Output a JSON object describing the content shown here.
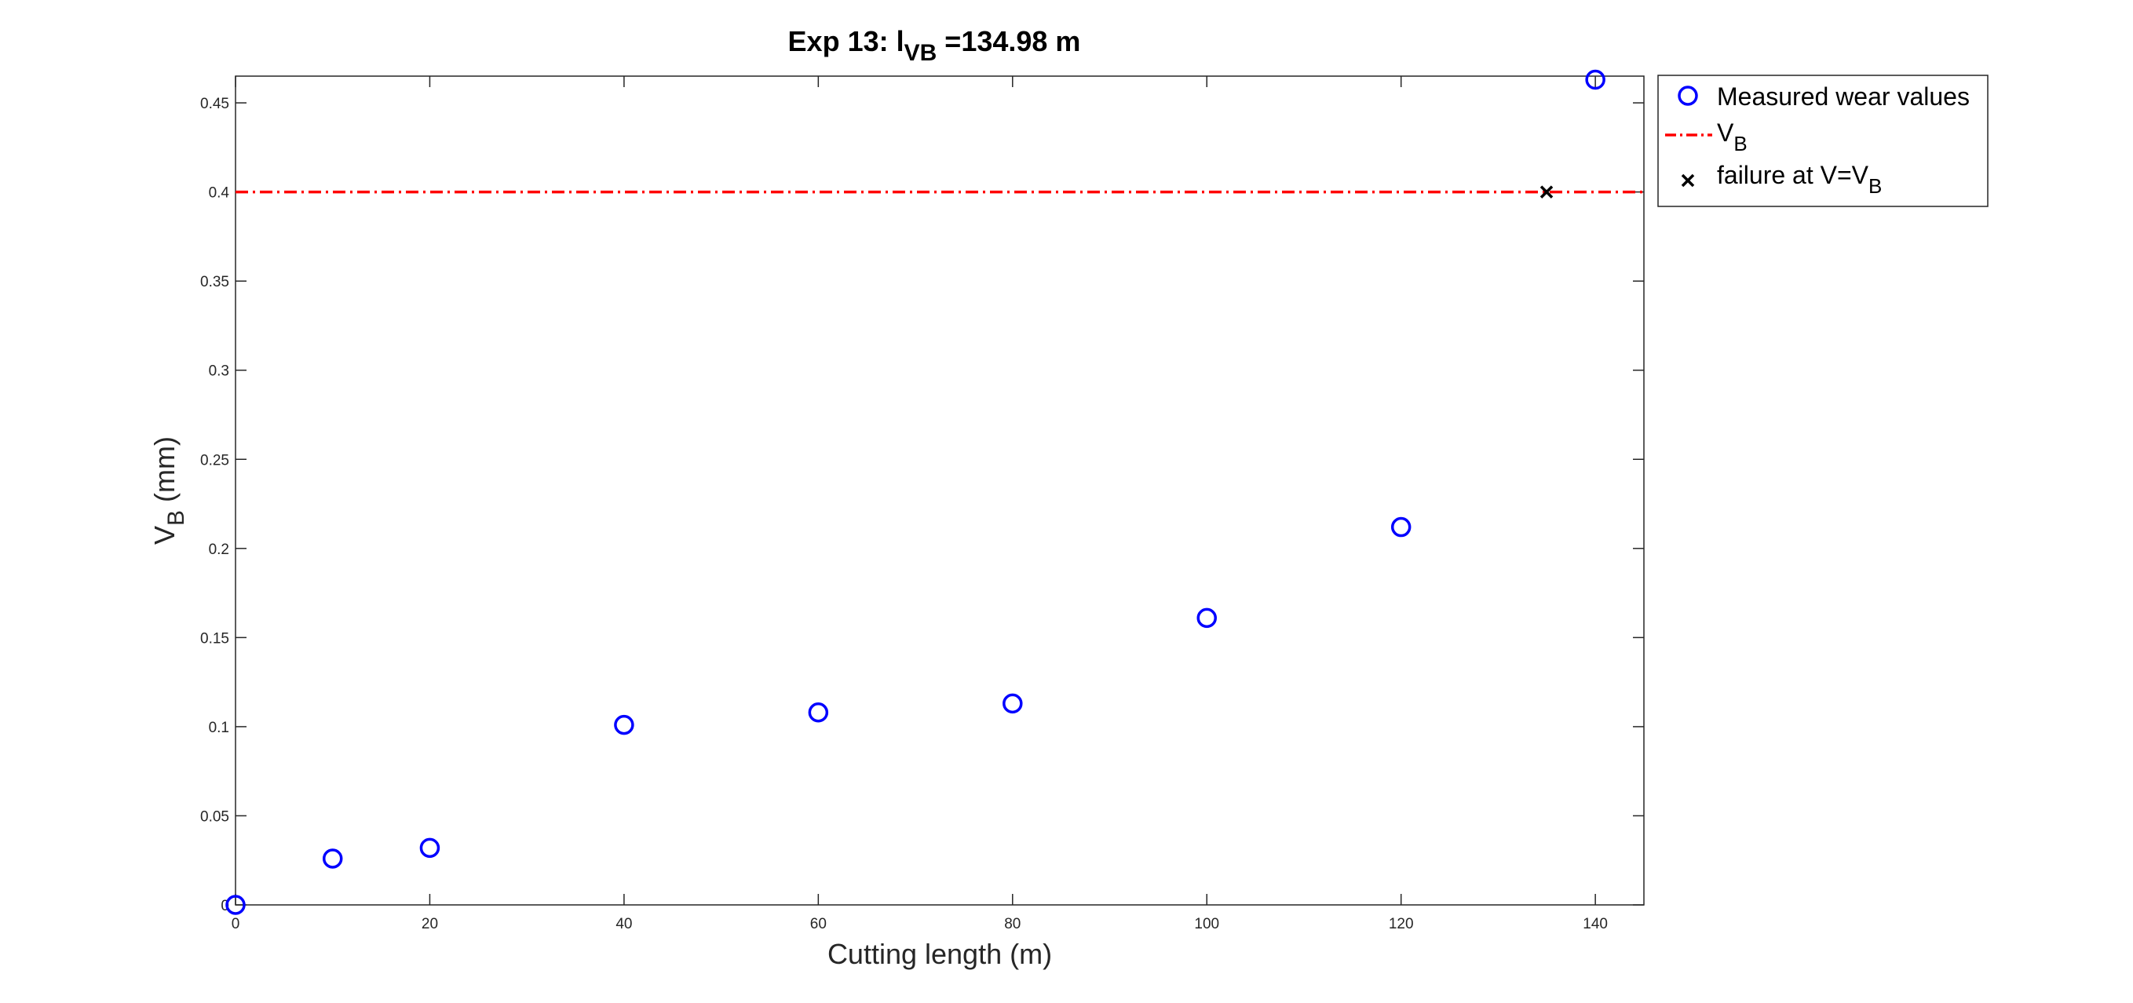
{
  "chart_data": {
    "type": "scatter",
    "title_main": "Exp 13: l",
    "title_sub": "VB",
    "title_rest": " =134.98 m",
    "xlabel": "Cutting length (m)",
    "ylabel_main": "V",
    "ylabel_sub": "B",
    "ylabel_rest": " (mm)",
    "xlim": [
      0,
      145
    ],
    "ylim": [
      0,
      0.465
    ],
    "xticks": [
      0,
      20,
      40,
      60,
      80,
      100,
      120,
      140
    ],
    "xtick_labels": [
      "0",
      "20",
      "40",
      "60",
      "80",
      "100",
      "120",
      "140"
    ],
    "yticks": [
      0,
      0.05,
      0.1,
      0.15,
      0.2,
      0.25,
      0.3,
      0.35,
      0.4,
      0.45
    ],
    "ytick_labels": [
      "0",
      "0.05",
      "0.1",
      "0.15",
      "0.2",
      "0.25",
      "0.3",
      "0.35",
      "0.4",
      "0.45"
    ],
    "grid": false,
    "legend_placement": "outside-top-right",
    "series": [
      {
        "name": "Measured wear values",
        "marker": "circle",
        "color": "#0000ff",
        "x": [
          0,
          10,
          20,
          40,
          60,
          80,
          100,
          120,
          140
        ],
        "y": [
          0,
          0.026,
          0.032,
          0.101,
          0.108,
          0.113,
          0.161,
          0.212,
          0.463
        ]
      },
      {
        "name_main": "V",
        "name_sub": "B",
        "type": "hline",
        "style": "dash-dot",
        "color": "#ff0000",
        "y": 0.4
      },
      {
        "name_main": "failure at V=V",
        "name_sub": "B",
        "marker": "x",
        "color": "#000000",
        "x": [
          134.98
        ],
        "y": [
          0.4
        ]
      }
    ]
  }
}
